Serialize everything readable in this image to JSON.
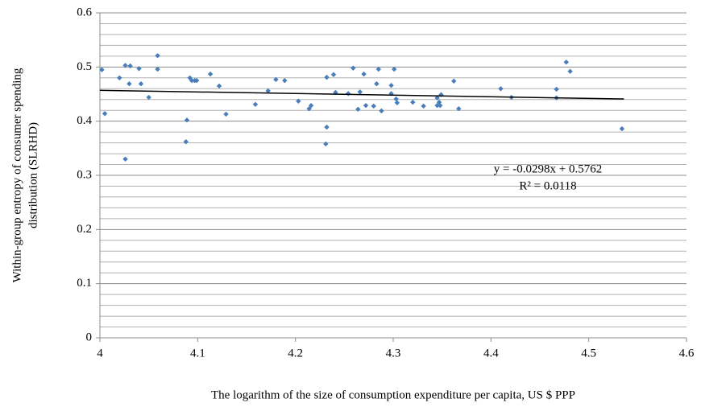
{
  "chart_data": {
    "type": "scatter",
    "xlabel": "The logarithm of the size of consumption expenditure per capita, US $ PPP",
    "ylabel": [
      "Within-group entropy of consumer spending",
      "distribution (SLRHD)"
    ],
    "xlim": [
      4,
      4.6
    ],
    "ylim": [
      0,
      0.6
    ],
    "xticks": [
      4,
      4.1,
      4.2,
      4.3,
      4.4,
      4.5,
      4.6
    ],
    "yticks": [
      0,
      0.1,
      0.2,
      0.3,
      0.4,
      0.5,
      0.6
    ],
    "minor_yticks": [
      0.02,
      0.04,
      0.06,
      0.08,
      0.12,
      0.14,
      0.16,
      0.18,
      0.22,
      0.24,
      0.26,
      0.28,
      0.32,
      0.34,
      0.36,
      0.38,
      0.42,
      0.44,
      0.46,
      0.48,
      0.52,
      0.54,
      0.56,
      0.58
    ],
    "grid": true,
    "color": "#4a7ebb",
    "x": [
      4.002,
      4.005,
      4.02,
      4.026,
      4.031,
      4.03,
      4.026,
      4.04,
      4.042,
      4.05,
      4.059,
      4.059,
      4.088,
      4.089,
      4.092,
      4.094,
      4.097,
      4.099,
      4.113,
      4.122,
      4.129,
      4.159,
      4.172,
      4.18,
      4.189,
      4.203,
      4.214,
      4.216,
      4.232,
      4.232,
      4.231,
      4.239,
      4.241,
      4.254,
      4.259,
      4.264,
      4.266,
      4.27,
      4.272,
      4.28,
      4.283,
      4.285,
      4.288,
      4.298,
      4.298,
      4.301,
      4.303,
      4.304,
      4.32,
      4.331,
      4.345,
      4.345,
      4.347,
      4.348,
      4.349,
      4.362,
      4.367,
      4.41,
      4.421,
      4.467,
      4.467,
      4.477,
      4.481,
      4.534
    ],
    "values": [
      0.495,
      0.414,
      0.48,
      0.503,
      0.502,
      0.469,
      0.33,
      0.497,
      0.469,
      0.444,
      0.496,
      0.521,
      0.362,
      0.402,
      0.48,
      0.475,
      0.475,
      0.475,
      0.487,
      0.465,
      0.413,
      0.431,
      0.456,
      0.477,
      0.475,
      0.437,
      0.423,
      0.429,
      0.481,
      0.389,
      0.358,
      0.486,
      0.453,
      0.451,
      0.498,
      0.422,
      0.454,
      0.487,
      0.429,
      0.428,
      0.469,
      0.496,
      0.419,
      0.466,
      0.451,
      0.496,
      0.441,
      0.434,
      0.435,
      0.428,
      0.429,
      0.443,
      0.435,
      0.429,
      0.449,
      0.474,
      0.423,
      0.46,
      0.444,
      0.459,
      0.443,
      0.509,
      0.492,
      0.386
    ],
    "trendline": {
      "slope": -0.0298,
      "intercept": 0.5762,
      "x_range": [
        4,
        4.536
      ],
      "color": "#000000",
      "equation": "y = -0.0298x + 0.5762",
      "r_squared": "R² = 0.0118"
    }
  }
}
